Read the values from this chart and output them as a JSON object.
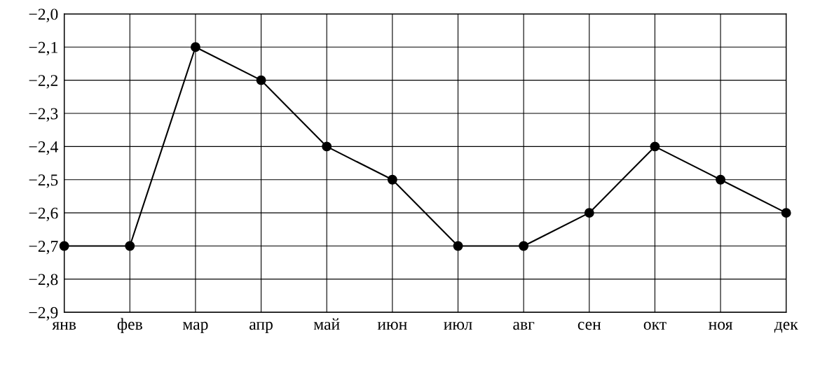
{
  "chart_data": {
    "type": "line",
    "categories": [
      "янв",
      "фев",
      "мар",
      "апр",
      "май",
      "июн",
      "июл",
      "авг",
      "сен",
      "окт",
      "ноя",
      "дек"
    ],
    "series": [
      {
        "color": "#000000",
        "values": [
          -2.7,
          -2.7,
          -2.1,
          -2.2,
          -2.4,
          -2.5,
          -2.7,
          -2.7,
          -2.6,
          -2.4,
          -2.5,
          -2.6
        ]
      }
    ],
    "ylim": [
      -2.9,
      -2.0
    ],
    "yticks": [
      {
        "value": -2.9,
        "label": "−2,9"
      },
      {
        "value": -2.8,
        "label": "−2,8"
      },
      {
        "value": -2.7,
        "label": "−2,7"
      },
      {
        "value": -2.6,
        "label": "−2,6"
      },
      {
        "value": -2.5,
        "label": "−2,5"
      },
      {
        "value": -2.4,
        "label": "−2,4"
      },
      {
        "value": -2.3,
        "label": "−2,3"
      },
      {
        "value": -2.2,
        "label": "−2,2"
      },
      {
        "value": -2.1,
        "label": "−2,1"
      },
      {
        "value": -2.0,
        "label": "−2,0"
      }
    ],
    "grid": true,
    "marker": "circle",
    "line_style": "solid"
  }
}
